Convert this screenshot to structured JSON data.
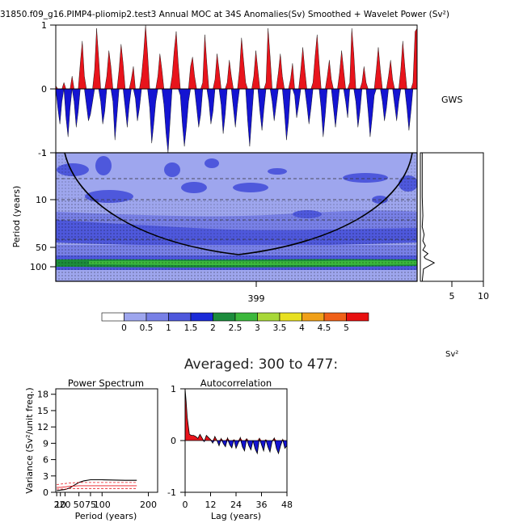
{
  "title": "31850.f09_g16.PIMP4-pliomip2.test3 Annual MOC at 34S Anomalies(Sv) Smoothed + Wavelet Power (Sv²)",
  "gws_label": "GWS",
  "sv2_label": "Sv²",
  "averaged_label": "Averaged: 300 to 477:",
  "colors": {
    "positive": "#e8141c",
    "negative": "#1414d2",
    "power_levels": [
      "#ffffff",
      "#9ea6ee",
      "#7880e6",
      "#4e58dc",
      "#1a2ad8",
      "#1c8c3c",
      "#3cb83c",
      "#a8d838",
      "#e8e020",
      "#f0a018",
      "#f06018",
      "#e81010"
    ]
  },
  "chart_data": [
    {
      "id": "timeseries",
      "type": "area",
      "ylim": [
        -1,
        1
      ],
      "y_ticks": [
        "-1",
        "0",
        "1"
      ],
      "x_range": [
        300,
        477
      ],
      "x_ticks": [
        "399"
      ],
      "series": [
        {
          "values": [
            0.05,
            -0.3,
            -0.55,
            -0.2,
            0.1,
            -0.45,
            -0.75,
            -0.3,
            0.2,
            -0.2,
            -0.6,
            -0.35,
            0.4,
            0.75,
            0.2,
            -0.25,
            -0.5,
            -0.4,
            -0.2,
            0.3,
            0.95,
            0.5,
            -0.2,
            -0.55,
            -0.35,
            0.2,
            0.6,
            0.35,
            -0.2,
            -0.8,
            -0.4,
            0.3,
            0.7,
            0.4,
            -0.3,
            -0.6,
            -0.25,
            0.15,
            0.35,
            -0.15,
            -0.5,
            -0.3,
            0.2,
            0.55,
            1.0,
            0.55,
            -0.3,
            -0.85,
            -0.55,
            -0.2,
            0.2,
            0.55,
            0.3,
            -0.25,
            -0.7,
            -1.0,
            -0.5,
            0.2,
            0.6,
            0.9,
            0.4,
            -0.1,
            -0.55,
            -0.9,
            -0.6,
            -0.2,
            0.35,
            0.5,
            0.2,
            -0.3,
            -0.6,
            -0.4,
            0.1,
            0.85,
            0.4,
            -0.2,
            -0.55,
            -0.35,
            0.15,
            0.55,
            0.3,
            -0.25,
            -0.7,
            -0.4,
            0.1,
            0.45,
            0.2,
            -0.3,
            -0.6,
            -0.25,
            0.3,
            0.8,
            0.45,
            0.1,
            -0.5,
            -0.9,
            -0.45,
            0.2,
            0.6,
            0.3,
            -0.35,
            -0.65,
            -0.3,
            0.1,
            0.95,
            0.5,
            -0.2,
            -0.5,
            -0.25,
            0.25,
            0.55,
            0.2,
            -0.35,
            -0.8,
            -0.5,
            0.15,
            0.4,
            -0.1,
            -0.45,
            -0.25,
            0.3,
            0.65,
            0.3,
            -0.25,
            -0.55,
            -0.3,
            0.1,
            0.5,
            0.85,
            0.4,
            -0.3,
            -0.75,
            -0.4,
            0.2,
            0.45,
            0.15,
            -0.3,
            -0.6,
            -0.3,
            0.25,
            0.6,
            0.3,
            -0.2,
            -0.45,
            0.1,
            0.95,
            0.55,
            -0.2,
            -0.6,
            -0.35,
            0.1,
            0.35,
            0.1,
            -0.35,
            -0.75,
            -0.45,
            -0.1,
            0.3,
            0.65,
            0.3,
            -0.2,
            -0.5,
            -0.3,
            0.2,
            0.45,
            0.15,
            -0.25,
            -0.5,
            -0.2,
            0.3,
            0.75,
            0.35,
            -0.3,
            -0.65,
            -0.35,
            0.1,
            0.9,
            0.95
          ]
        }
      ]
    },
    {
      "id": "wavelet_power",
      "type": "heatmap",
      "ylabel": "Period (years)",
      "y_ticks": [
        "1",
        "10",
        "50",
        "100"
      ],
      "x_ticks": [
        "399"
      ],
      "colorbar_ticks": [
        "0",
        "0.5",
        "1",
        "1.5",
        "2",
        "2.5",
        "3",
        "3.5",
        "4",
        "4.5",
        "5"
      ]
    },
    {
      "id": "global_wavelet_spectrum",
      "type": "line",
      "x_ticks": [
        "5",
        "10"
      ],
      "xlim": [
        0,
        10
      ],
      "series": [
        {
          "x": [
            0.3,
            0.3,
            0.4,
            0.3,
            0.6,
            0.4,
            0.8,
            0.4,
            1.2,
            0.6,
            0.8,
            1.6,
            2.2,
            0.5,
            0.3
          ],
          "y": [
            1,
            5,
            10,
            15,
            20,
            25,
            30,
            35,
            40,
            45,
            48,
            52,
            56,
            70,
            110
          ]
        }
      ]
    },
    {
      "id": "power_spectrum",
      "type": "line",
      "title": "Power Spectrum",
      "xlabel": "Period (years)",
      "ylabel": "Variance (Sv²/unit freq.)",
      "ylim": [
        0,
        19
      ],
      "xlim": [
        0,
        220
      ],
      "y_ticks": [
        "0",
        "3",
        "6",
        "9",
        "12",
        "15",
        "18"
      ],
      "x_ticks": [
        "2",
        "10",
        "20",
        "50",
        "75",
        "100",
        "200"
      ],
      "series": [
        {
          "x": [
            2,
            10,
            20,
            30,
            40,
            50,
            60,
            75,
            100,
            150,
            175
          ],
          "y": [
            0.3,
            0.4,
            0.5,
            0.8,
            1.3,
            1.8,
            2.1,
            2.3,
            2.3,
            2.2,
            2.2
          ]
        },
        {
          "x": [
            2,
            10,
            20,
            30,
            50,
            75,
            100,
            175
          ],
          "y": [
            0.9,
            0.9,
            1.0,
            1.1,
            1.2,
            1.2,
            1.2,
            1.2
          ]
        },
        {
          "x": [
            2,
            10,
            20,
            30,
            50,
            75,
            100,
            175
          ],
          "y": [
            1.4,
            1.5,
            1.6,
            1.7,
            1.8,
            1.8,
            1.8,
            1.8
          ]
        },
        {
          "x": [
            2,
            10,
            20,
            30,
            50,
            75,
            100,
            175
          ],
          "y": [
            0.6,
            0.6,
            0.6,
            0.7,
            0.7,
            0.7,
            0.7,
            0.7
          ]
        }
      ]
    },
    {
      "id": "autocorrelation",
      "type": "area",
      "title": "Autocorrelation",
      "xlabel": "Lag (years)",
      "ylim": [
        -1,
        1
      ],
      "xlim": [
        0,
        48
      ],
      "y_ticks": [
        "-1",
        "0",
        "1"
      ],
      "x_ticks": [
        "0",
        "12",
        "24",
        "36",
        "48"
      ],
      "series": [
        {
          "x": [
            0,
            0.5,
            1,
            2,
            3,
            4,
            5,
            6,
            7,
            8,
            9,
            10,
            11,
            12,
            13,
            14,
            15,
            16,
            17,
            18,
            19,
            20,
            21,
            22,
            23,
            24,
            25,
            26,
            27,
            28,
            29,
            30,
            31,
            32,
            33,
            34,
            35,
            36,
            37,
            38,
            39,
            40,
            41,
            42,
            43,
            44,
            45,
            46,
            47,
            48
          ],
          "y": [
            1.0,
            0.75,
            0.45,
            0.12,
            0.1,
            0.1,
            0.08,
            0.04,
            0.12,
            0.05,
            -0.02,
            0.1,
            0.06,
            0.02,
            -0.05,
            0.08,
            0.0,
            -0.1,
            0.04,
            -0.06,
            -0.12,
            0.05,
            -0.08,
            -0.14,
            0.02,
            -0.15,
            -0.05,
            0.06,
            -0.12,
            -0.2,
            0.04,
            -0.1,
            -0.18,
            0.0,
            -0.16,
            -0.25,
            0.05,
            -0.08,
            -0.2,
            0.02,
            -0.12,
            -0.22,
            -0.02,
            0.05,
            -0.15,
            -0.25,
            -0.1,
            0.02,
            -0.15,
            -0.1
          ]
        }
      ]
    }
  ]
}
